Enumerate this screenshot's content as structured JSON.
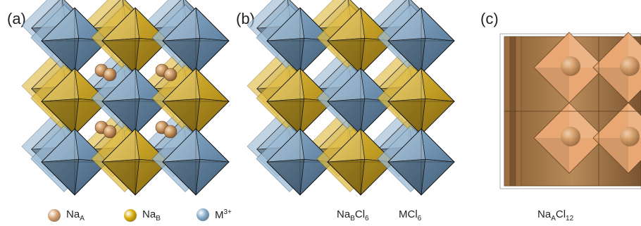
{
  "panels": [
    {
      "label": "(a)"
    },
    {
      "label": "(b)"
    },
    {
      "label": "(c)"
    }
  ],
  "legend": [
    {
      "text": "Na",
      "sub": "A",
      "sup": "",
      "color": "#d19a6a",
      "icon": "sphere-na-a"
    },
    {
      "text": "Na",
      "sub": "B",
      "sup": "",
      "color": "#d6a800",
      "icon": "sphere-na-b"
    },
    {
      "text": "M",
      "sub": "",
      "sup": "3+",
      "color": "#7fa7c6",
      "icon": "sphere-m3"
    }
  ],
  "captions_b": [
    {
      "parts": [
        [
          "Na",
          ""
        ],
        [
          "B",
          "sub"
        ],
        [
          "Cl",
          ""
        ],
        [
          "6",
          "sub"
        ]
      ]
    },
    {
      "parts": [
        [
          "MCl",
          ""
        ],
        [
          "6",
          "sub"
        ]
      ]
    }
  ],
  "caption_c": {
    "parts": [
      [
        "Na",
        ""
      ],
      [
        "A",
        "sub"
      ],
      [
        "Cl",
        ""
      ],
      [
        "12",
        "sub"
      ]
    ]
  },
  "colors": {
    "gold": "#c9a227",
    "gold_dark": "#8a6a10",
    "blue": "#6f93b3",
    "blue_dark": "#3f5f7a",
    "na_a": "#c8955f",
    "cubo": "#a87c4f",
    "cubo_face": "#f2b27a"
  }
}
